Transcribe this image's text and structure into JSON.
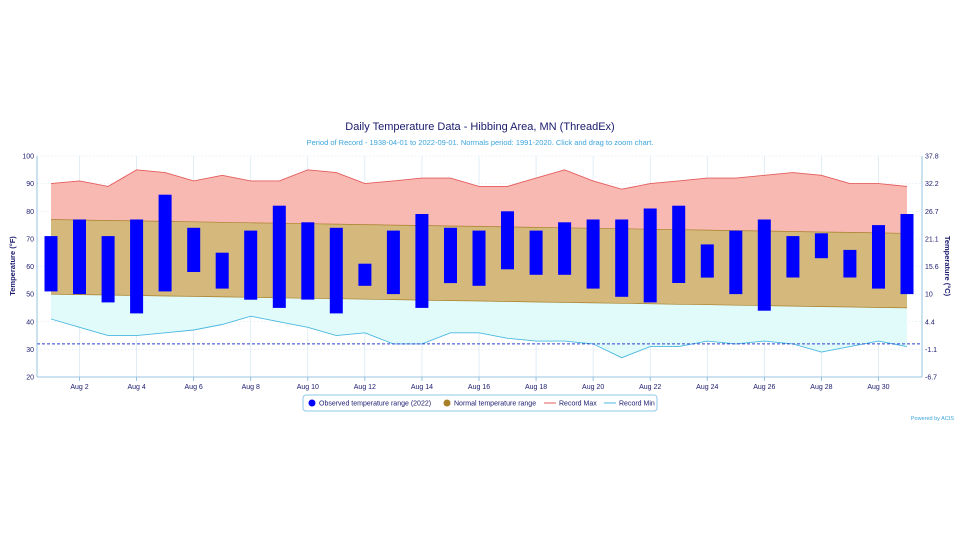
{
  "chart_data": {
    "type": "bar",
    "title": "Daily Temperature Data - Hibbing Area, MN (ThreadEx)",
    "subtitle": "Period of Record - 1938-04-01 to 2022-09-01. Normals period: 1991-2020. Click and drag to zoom chart.",
    "ylabel": "Temperature (°F)",
    "ylabel_right": "Temperature (°C)",
    "ylim": [
      20,
      100
    ],
    "y_ticks": [
      20,
      30,
      40,
      50,
      60,
      70,
      80,
      90,
      100
    ],
    "y_ticks_right": [
      "-6.7",
      "-1.1",
      "4.4",
      "10",
      "15.6",
      "21.1",
      "26.7",
      "32.2",
      "37.8"
    ],
    "x": [
      1,
      2,
      3,
      4,
      5,
      6,
      7,
      8,
      9,
      10,
      11,
      12,
      13,
      14,
      15,
      16,
      17,
      18,
      19,
      20,
      21,
      22,
      23,
      24,
      25,
      26,
      27,
      28,
      29,
      30,
      31
    ],
    "x_tick_labels": [
      "Aug 2",
      "Aug 4",
      "Aug 6",
      "Aug 8",
      "Aug 10",
      "Aug 12",
      "Aug 14",
      "Aug 16",
      "Aug 18",
      "Aug 20",
      "Aug 22",
      "Aug 24",
      "Aug 26",
      "Aug 28",
      "Aug 30"
    ],
    "x_tick_days": [
      2,
      4,
      6,
      8,
      10,
      12,
      14,
      16,
      18,
      20,
      22,
      24,
      26,
      28,
      30
    ],
    "grid": true,
    "legend_position": "bottom",
    "series": [
      {
        "name": "Observed temperature range (2022)",
        "color": "#0000ff",
        "low": [
          51,
          50,
          47,
          43,
          51,
          58,
          52,
          48,
          45,
          48,
          43,
          53,
          50,
          45,
          54,
          53,
          59,
          57,
          57,
          52,
          49,
          47,
          54,
          56,
          50,
          44,
          56,
          63,
          56,
          52,
          50
        ],
        "high": [
          71,
          77,
          71,
          77,
          86,
          74,
          65,
          73,
          82,
          76,
          74,
          61,
          73,
          79,
          74,
          73,
          80,
          73,
          76,
          77,
          77,
          81,
          82,
          68,
          73,
          77,
          71,
          72,
          66,
          75,
          79
        ]
      },
      {
        "name": "Normal temperature range",
        "color": "#a8802a",
        "fill": "#d4b87c",
        "high_start": 77,
        "high_end": 72,
        "low_start": 50,
        "low_end": 45
      },
      {
        "name": "Record Max",
        "color": "#e45c5c",
        "fill": "#f9b9b3",
        "values": [
          90,
          91,
          89,
          95,
          94,
          91,
          93,
          91,
          91,
          95,
          94,
          90,
          91,
          92,
          92,
          89,
          89,
          92,
          95,
          91,
          88,
          90,
          91,
          92,
          92,
          93,
          94,
          93,
          90,
          90,
          89
        ]
      },
      {
        "name": "Record Min",
        "color": "#4cb8e0",
        "fill": "#e1fbfb",
        "values": [
          41,
          38,
          35,
          35,
          36,
          37,
          39,
          42,
          40,
          38,
          35,
          36,
          32,
          32,
          36,
          36,
          34,
          33,
          33,
          32,
          27,
          31,
          31,
          33,
          32,
          33,
          32,
          29,
          31,
          33,
          31
        ]
      }
    ],
    "reference_line": {
      "value": 32,
      "color": "#2b3fd6"
    }
  },
  "credits": "Powered by ACIS"
}
